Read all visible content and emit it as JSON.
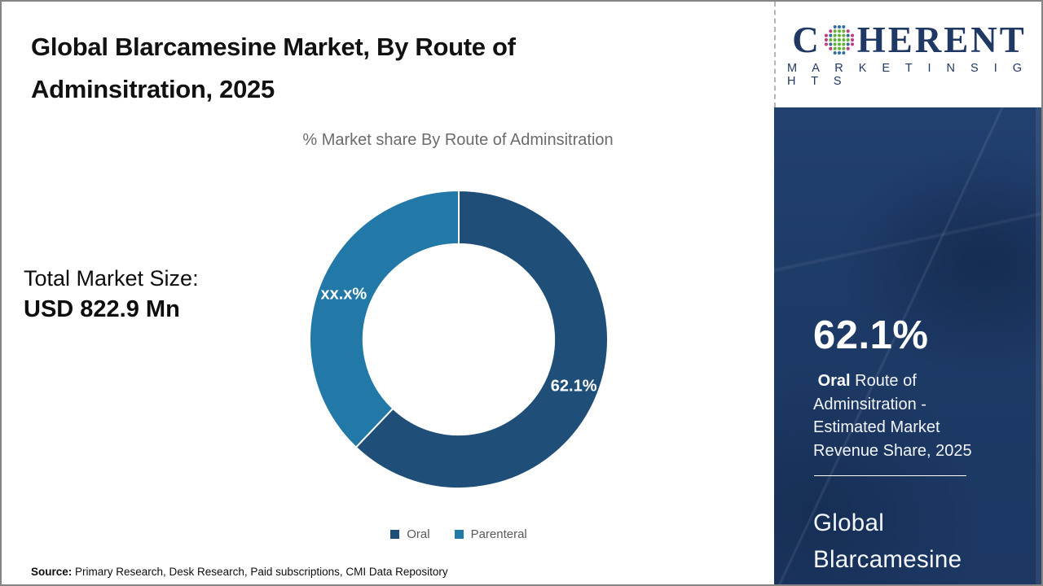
{
  "page": {
    "title": "Global Blarcamesine Market, By Route of Adminsitration, 2025",
    "subtitle": "% Market share By Route of Adminsitration",
    "total_market_label": "Total Market Size:",
    "total_market_value": "USD 822.9 Mn",
    "source_label": "Source:",
    "source_text": " Primary Research, Desk Research, Paid subscriptions, CMI Data Repository"
  },
  "chart_data": {
    "type": "pie",
    "subtype": "donut",
    "title": "% Market share By Route of Adminsitration",
    "start_angle_deg_from_top": 0,
    "direction": "clockwise",
    "donut_hole_ratio": 0.64,
    "legend_position": "bottom",
    "slices": [
      {
        "name": "Oral",
        "value": 62.1,
        "data_label": "62.1%",
        "color": "#1F4E79"
      },
      {
        "name": "Parenteral",
        "value": 37.9,
        "data_label": "xx.x%",
        "color": "#2279A8"
      }
    ]
  },
  "sidebar": {
    "stat_value": "62.1%",
    "stat_bold_word": "Oral",
    "stat_text_after": " Route of Adminsitration - Estimated Market Revenue Share, 2025",
    "market_name": "Global Blarcamesine Market",
    "background_color": "#1D3A66"
  },
  "logo": {
    "word_start": "C",
    "word_end": "HERENT",
    "tagline": "M A R K E T   I N S I G H T S",
    "navy": "#1F3864",
    "dot_green": "#63B139",
    "dot_pink": "#BE3A86",
    "dot_blue": "#2F6DA3"
  }
}
